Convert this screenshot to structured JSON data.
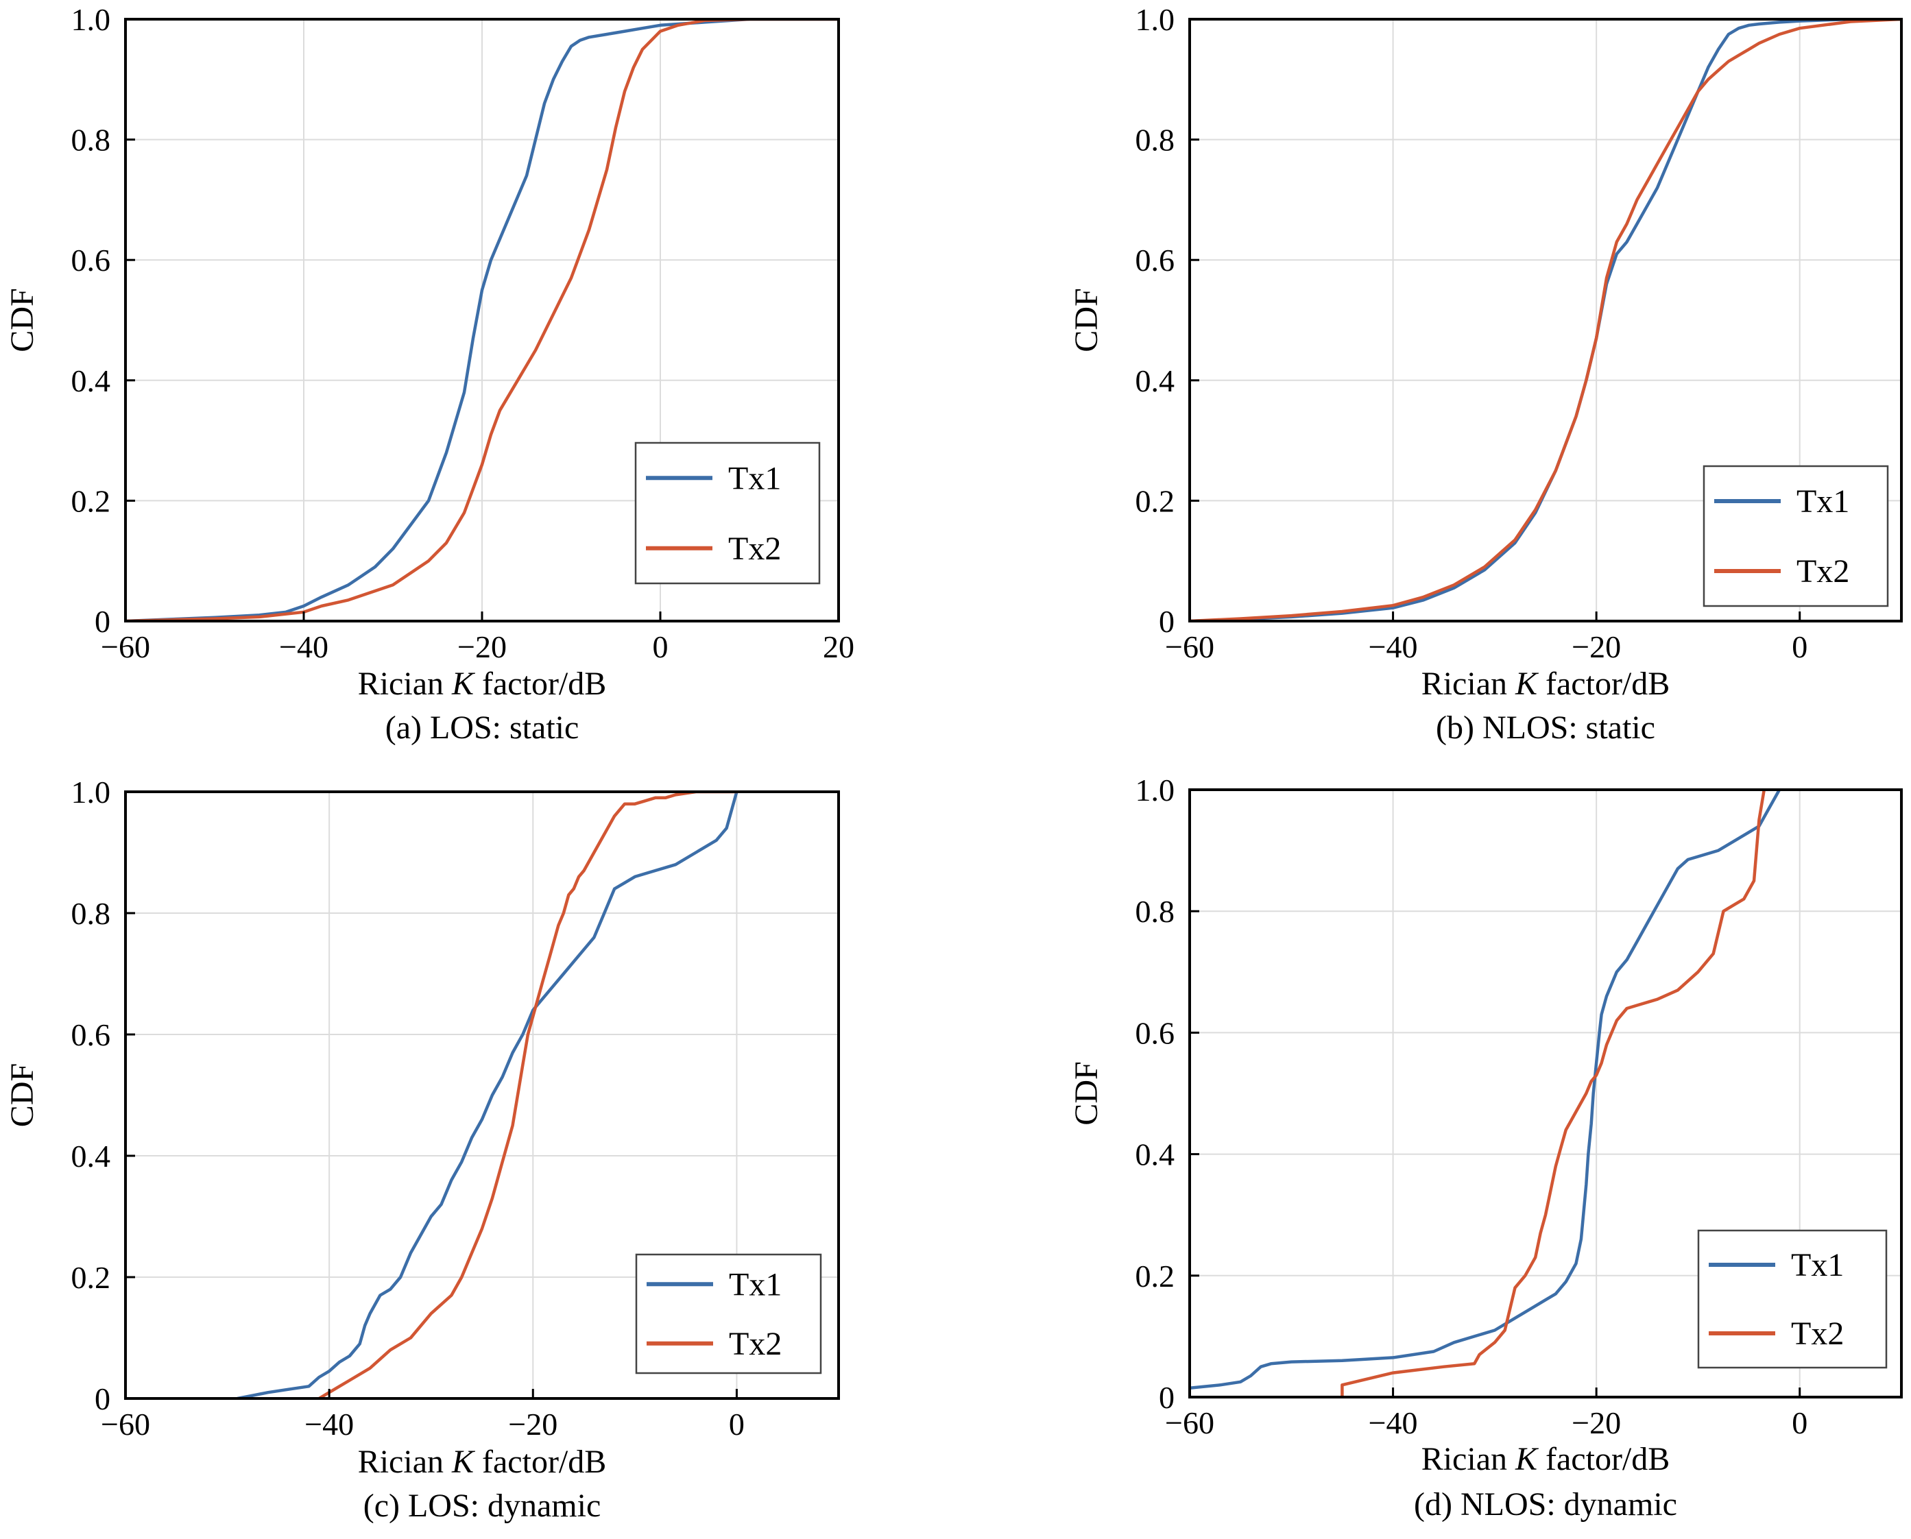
{
  "chart_data": [
    {
      "type": "line",
      "caption": "(a) LOS: static",
      "xlabel_prefix": "Rician ",
      "xlabel_italic": "K",
      "xlabel_suffix": " factor/dB",
      "ylabel": "CDF",
      "xlim": [
        -60,
        20
      ],
      "ylim": [
        0,
        1
      ],
      "xticks": [
        -60,
        -40,
        -20,
        0,
        20
      ],
      "xtick_labels": [
        "−60",
        "−40",
        "−20",
        "0",
        "20"
      ],
      "yticks": [
        0,
        0.2,
        0.4,
        0.6,
        0.8,
        1.0
      ],
      "ytick_labels": [
        "0",
        "0.2",
        "0.4",
        "0.6",
        "0.8",
        "1.0"
      ],
      "grid": true,
      "legend_position": "bottom-right",
      "series": [
        {
          "name": "Tx1",
          "color": "#3c6ea8",
          "x": [
            -60,
            -55,
            -50,
            -45,
            -42,
            -40,
            -38,
            -35,
            -32,
            -30,
            -28,
            -26,
            -24,
            -22,
            -21,
            -20,
            -19,
            -17,
            -15,
            -14,
            -13,
            -12,
            -11,
            -10,
            -9,
            -8,
            -6,
            -4,
            -2,
            0,
            5,
            10,
            20
          ],
          "y": [
            0,
            0.003,
            0.006,
            0.01,
            0.015,
            0.025,
            0.04,
            0.06,
            0.09,
            0.12,
            0.16,
            0.2,
            0.28,
            0.38,
            0.47,
            0.55,
            0.6,
            0.67,
            0.74,
            0.8,
            0.86,
            0.9,
            0.93,
            0.955,
            0.965,
            0.97,
            0.975,
            0.98,
            0.985,
            0.99,
            0.995,
            1.0,
            1.0
          ]
        },
        {
          "name": "Tx2",
          "color": "#d25633",
          "x": [
            -60,
            -55,
            -50,
            -45,
            -40,
            -38,
            -35,
            -30,
            -28,
            -26,
            -24,
            -22,
            -20,
            -19,
            -18,
            -16,
            -14,
            -12,
            -10,
            -9,
            -8,
            -7,
            -6,
            -5,
            -4,
            -3,
            -2,
            0,
            2,
            5,
            10,
            20
          ],
          "y": [
            0,
            0.002,
            0.004,
            0.007,
            0.015,
            0.025,
            0.035,
            0.06,
            0.08,
            0.1,
            0.13,
            0.18,
            0.26,
            0.31,
            0.35,
            0.4,
            0.45,
            0.51,
            0.57,
            0.61,
            0.65,
            0.7,
            0.75,
            0.82,
            0.88,
            0.92,
            0.95,
            0.98,
            0.99,
            0.998,
            1.0,
            1.0
          ]
        }
      ]
    },
    {
      "type": "line",
      "caption": "(b) NLOS: static",
      "xlabel_prefix": "Rician ",
      "xlabel_italic": "K",
      "xlabel_suffix": " factor/dB",
      "ylabel": "CDF",
      "xlim": [
        -60,
        10
      ],
      "ylim": [
        0,
        1
      ],
      "xticks": [
        -60,
        -40,
        -20,
        0
      ],
      "xtick_labels": [
        "−60",
        "−40",
        "−20",
        "0"
      ],
      "yticks": [
        0,
        0.2,
        0.4,
        0.6,
        0.8,
        1.0
      ],
      "ytick_labels": [
        "0",
        "0.2",
        "0.4",
        "0.6",
        "0.8",
        "1.0"
      ],
      "grid": true,
      "legend_position": "bottom-right",
      "series": [
        {
          "name": "Tx1",
          "color": "#3c6ea8",
          "x": [
            -60,
            -55,
            -50,
            -45,
            -40,
            -37,
            -34,
            -31,
            -28,
            -26,
            -24,
            -22,
            -21,
            -20,
            -19,
            -18,
            -17,
            -16,
            -15,
            -14,
            -13,
            -12,
            -11,
            -10,
            -9,
            -8,
            -7,
            -6,
            -5,
            -4,
            -2,
            0,
            5,
            10
          ],
          "y": [
            0,
            0.003,
            0.007,
            0.013,
            0.022,
            0.035,
            0.055,
            0.085,
            0.13,
            0.18,
            0.25,
            0.34,
            0.4,
            0.47,
            0.56,
            0.61,
            0.63,
            0.66,
            0.69,
            0.72,
            0.76,
            0.8,
            0.84,
            0.88,
            0.92,
            0.95,
            0.975,
            0.985,
            0.99,
            0.992,
            0.995,
            0.997,
            1.0,
            1.0
          ]
        },
        {
          "name": "Tx2",
          "color": "#d25633",
          "x": [
            -60,
            -55,
            -50,
            -45,
            -40,
            -37,
            -34,
            -31,
            -28,
            -26,
            -24,
            -22,
            -21,
            -20,
            -19,
            -18,
            -17,
            -16,
            -15,
            -14,
            -13,
            -12,
            -11,
            -10,
            -9,
            -8,
            -7,
            -6,
            -5,
            -4,
            -2,
            0,
            5,
            10
          ],
          "y": [
            0,
            0.004,
            0.009,
            0.016,
            0.026,
            0.04,
            0.06,
            0.09,
            0.135,
            0.185,
            0.25,
            0.34,
            0.4,
            0.47,
            0.57,
            0.63,
            0.66,
            0.7,
            0.73,
            0.76,
            0.79,
            0.82,
            0.85,
            0.88,
            0.9,
            0.915,
            0.93,
            0.94,
            0.95,
            0.96,
            0.975,
            0.985,
            0.996,
            1.0
          ]
        }
      ]
    },
    {
      "type": "line",
      "caption": "(c) LOS: dynamic",
      "xlabel_prefix": "Rician ",
      "xlabel_italic": "K",
      "xlabel_suffix": " factor/dB",
      "ylabel": "CDF",
      "xlim": [
        -60,
        10
      ],
      "ylim": [
        0,
        1
      ],
      "xticks": [
        -60,
        -40,
        -20,
        0
      ],
      "xtick_labels": [
        "−60",
        "−40",
        "−20",
        "0"
      ],
      "yticks": [
        0,
        0.2,
        0.4,
        0.6,
        0.8,
        1.0
      ],
      "ytick_labels": [
        "0",
        "0.2",
        "0.4",
        "0.6",
        "0.8",
        "1.0"
      ],
      "grid": true,
      "legend_position": "bottom-right",
      "series": [
        {
          "name": "Tx1",
          "color": "#3c6ea8",
          "x": [
            -49,
            -46,
            -44,
            -42,
            -41,
            -40,
            -39,
            -38,
            -37,
            -36.5,
            -36,
            -35,
            -34,
            -33,
            -32,
            -31,
            -30,
            -29,
            -28,
            -27,
            -26,
            -25,
            -24,
            -23,
            -22,
            -21,
            -20,
            -19,
            -18,
            -17,
            -16,
            -15,
            -14,
            -13,
            -12,
            -11,
            -10,
            -8,
            -6,
            -4,
            -2,
            -1,
            -0.5,
            0
          ],
          "y": [
            0,
            0.01,
            0.015,
            0.02,
            0.035,
            0.045,
            0.06,
            0.07,
            0.09,
            0.12,
            0.14,
            0.17,
            0.18,
            0.2,
            0.24,
            0.27,
            0.3,
            0.32,
            0.36,
            0.39,
            0.43,
            0.46,
            0.5,
            0.53,
            0.57,
            0.6,
            0.64,
            0.66,
            0.68,
            0.7,
            0.72,
            0.74,
            0.76,
            0.8,
            0.84,
            0.85,
            0.86,
            0.87,
            0.88,
            0.9,
            0.92,
            0.94,
            0.97,
            1.0
          ]
        },
        {
          "name": "Tx2",
          "color": "#d25633",
          "x": [
            -41,
            -40,
            -39,
            -38,
            -36,
            -34,
            -32,
            -30,
            -28,
            -27,
            -26,
            -25,
            -24,
            -23,
            -22,
            -21.5,
            -21,
            -20.5,
            -20,
            -19.5,
            -19,
            -18.5,
            -18,
            -17.5,
            -17,
            -16.5,
            -16,
            -15.5,
            -15,
            -14,
            -13,
            -12,
            -11,
            -10,
            -9,
            -8,
            -7,
            -6,
            -4,
            -2,
            -1,
            0
          ],
          "y": [
            0,
            0.01,
            0.02,
            0.03,
            0.05,
            0.08,
            0.1,
            0.14,
            0.17,
            0.2,
            0.24,
            0.28,
            0.33,
            0.39,
            0.45,
            0.5,
            0.55,
            0.6,
            0.63,
            0.66,
            0.69,
            0.72,
            0.75,
            0.78,
            0.8,
            0.83,
            0.84,
            0.86,
            0.87,
            0.9,
            0.93,
            0.96,
            0.98,
            0.98,
            0.985,
            0.99,
            0.99,
            0.995,
            1.0,
            1.0,
            1.0,
            1.0
          ]
        }
      ]
    },
    {
      "type": "line",
      "caption": "(d) NLOS: dynamic",
      "xlabel_prefix": "Rician ",
      "xlabel_italic": "K",
      "xlabel_suffix": " factor/dB",
      "ylabel": "CDF",
      "xlim": [
        -60,
        10
      ],
      "ylim": [
        0,
        1
      ],
      "xticks": [
        -60,
        -40,
        -20,
        0
      ],
      "xtick_labels": [
        "−60",
        "−40",
        "−20",
        "0"
      ],
      "yticks": [
        0,
        0.2,
        0.4,
        0.6,
        0.8,
        1.0
      ],
      "ytick_labels": [
        "0",
        "0.2",
        "0.4",
        "0.6",
        "0.8",
        "1.0"
      ],
      "grid": true,
      "legend_position": "bottom-right",
      "series": [
        {
          "name": "Tx1",
          "color": "#3c6ea8",
          "x": [
            -60,
            -57,
            -55,
            -54,
            -53,
            -52,
            -50,
            -45,
            -40,
            -36,
            -34,
            -32,
            -30,
            -28,
            -26,
            -25,
            -24,
            -23,
            -22,
            -21.5,
            -21,
            -20.8,
            -20.5,
            -20.3,
            -20,
            -19.7,
            -19.5,
            -19,
            -18.5,
            -18,
            -17,
            -16,
            -15,
            -14,
            -13,
            -12,
            -11,
            -10,
            -8,
            -6,
            -4,
            -3,
            -2
          ],
          "y": [
            0.015,
            0.02,
            0.025,
            0.035,
            0.05,
            0.055,
            0.058,
            0.06,
            0.065,
            0.075,
            0.09,
            0.1,
            0.11,
            0.13,
            0.15,
            0.16,
            0.17,
            0.19,
            0.22,
            0.26,
            0.35,
            0.4,
            0.45,
            0.5,
            0.55,
            0.6,
            0.63,
            0.66,
            0.68,
            0.7,
            0.72,
            0.75,
            0.78,
            0.81,
            0.84,
            0.87,
            0.885,
            0.89,
            0.9,
            0.92,
            0.94,
            0.97,
            1.0
          ]
        },
        {
          "name": "Tx2",
          "color": "#d25633",
          "x": [
            -45,
            -45,
            -40,
            -35,
            -32,
            -31.5,
            -30,
            -29,
            -28,
            -27,
            -26,
            -25.5,
            -25,
            -24.5,
            -24,
            -23.5,
            -23,
            -22,
            -21,
            -20.5,
            -20,
            -19.5,
            -19,
            -18.5,
            -18,
            -17,
            -16,
            -14,
            -12,
            -10,
            -8.5,
            -7.5,
            -7.5,
            -6.5,
            -5.5,
            -4.5,
            -4,
            -3.5
          ],
          "y": [
            0,
            0.02,
            0.04,
            0.05,
            0.055,
            0.07,
            0.09,
            0.11,
            0.18,
            0.2,
            0.23,
            0.27,
            0.3,
            0.34,
            0.38,
            0.41,
            0.44,
            0.47,
            0.5,
            0.52,
            0.53,
            0.55,
            0.58,
            0.6,
            0.62,
            0.64,
            0.645,
            0.655,
            0.67,
            0.7,
            0.73,
            0.8,
            0.8,
            0.81,
            0.82,
            0.85,
            0.95,
            1.0
          ]
        }
      ]
    }
  ]
}
